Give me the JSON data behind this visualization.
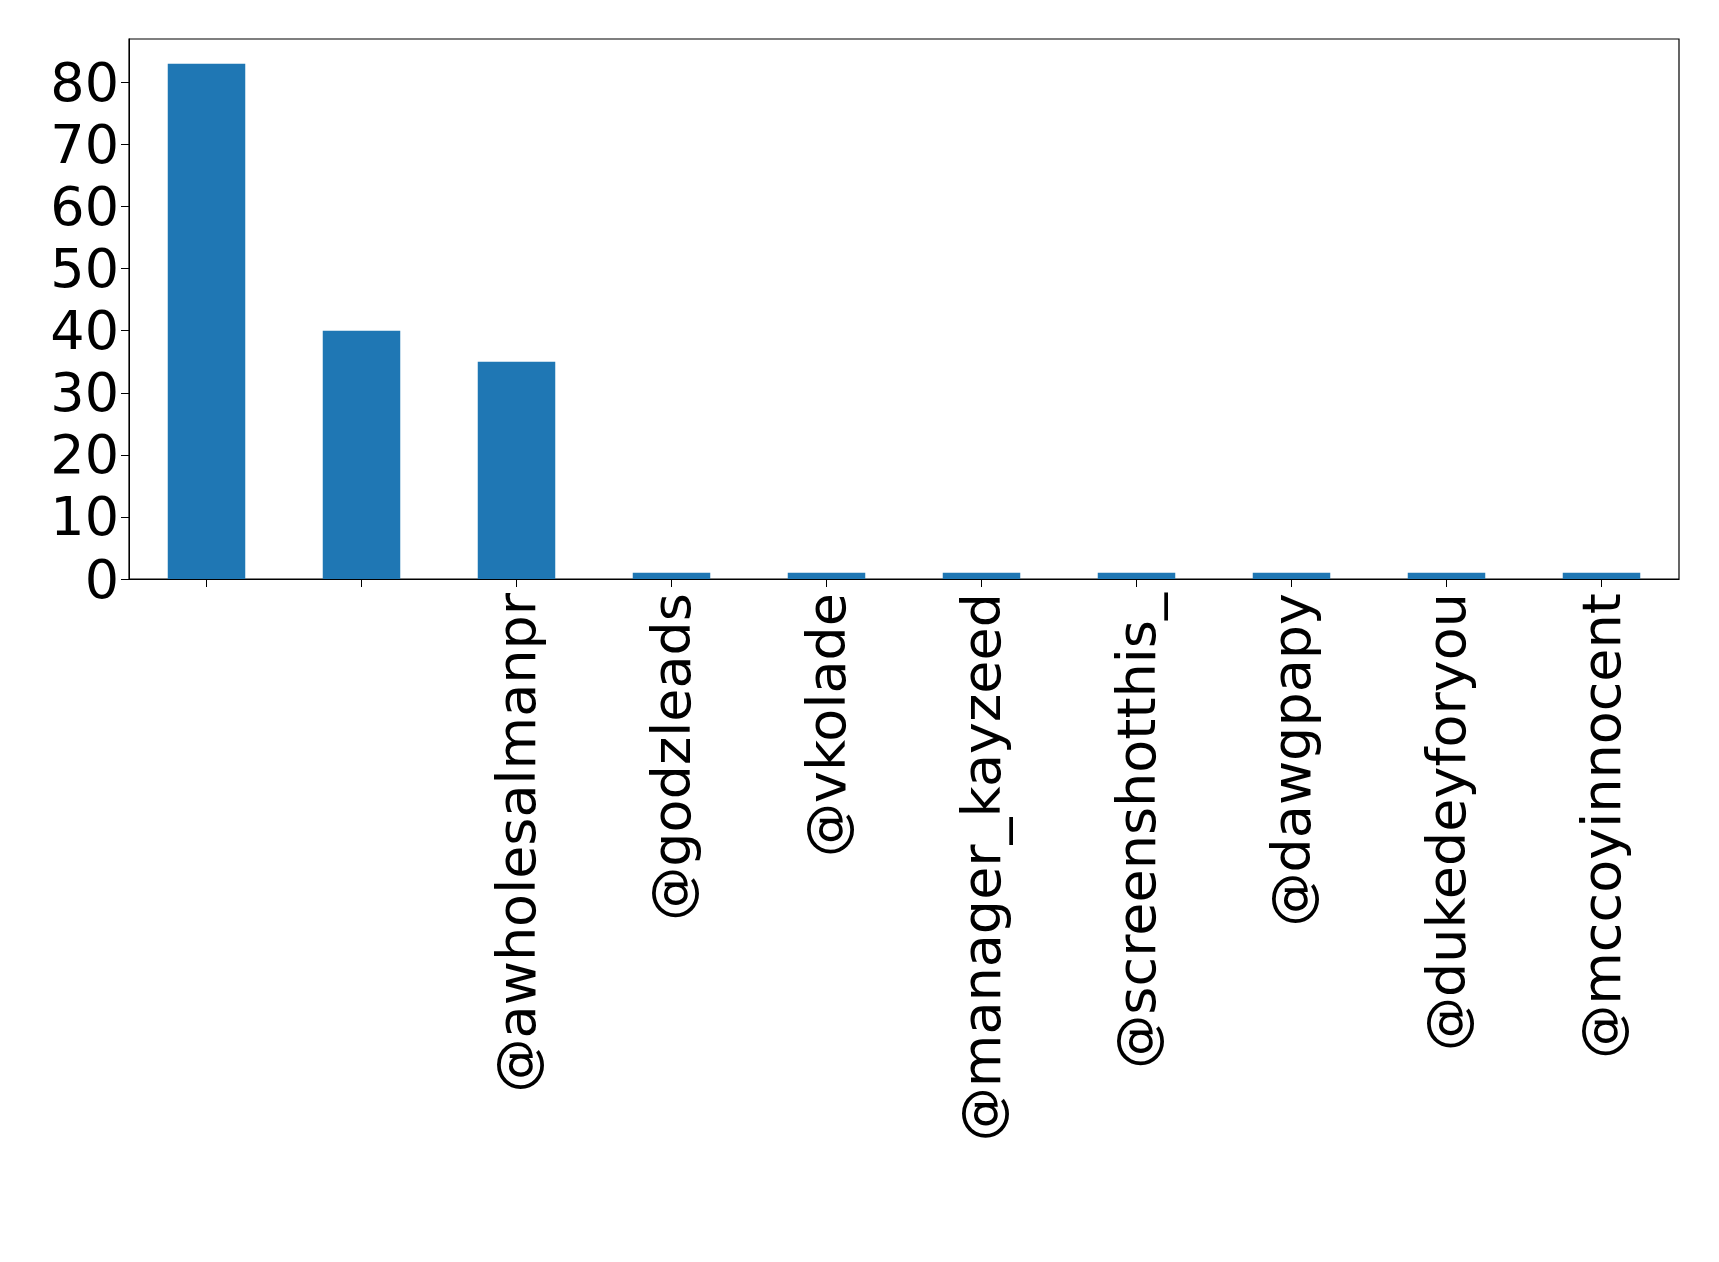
{
  "chart_data": {
    "type": "bar",
    "categories": [
      null,
      null,
      "@awholesalmanpr",
      "@godzleads",
      "@vkolade",
      "@manager_kayzeed",
      "@screenshotthis_",
      "@dawgpapy",
      "@dukedeyforyou",
      "@mccoyinnocent"
    ],
    "values": [
      83,
      40,
      35,
      1,
      1,
      1,
      1,
      1,
      1,
      1
    ],
    "color": "#1f77b4",
    "ylim": [
      0,
      87
    ],
    "yticks": [
      0,
      10,
      20,
      30,
      40,
      50,
      60,
      70,
      80
    ]
  }
}
